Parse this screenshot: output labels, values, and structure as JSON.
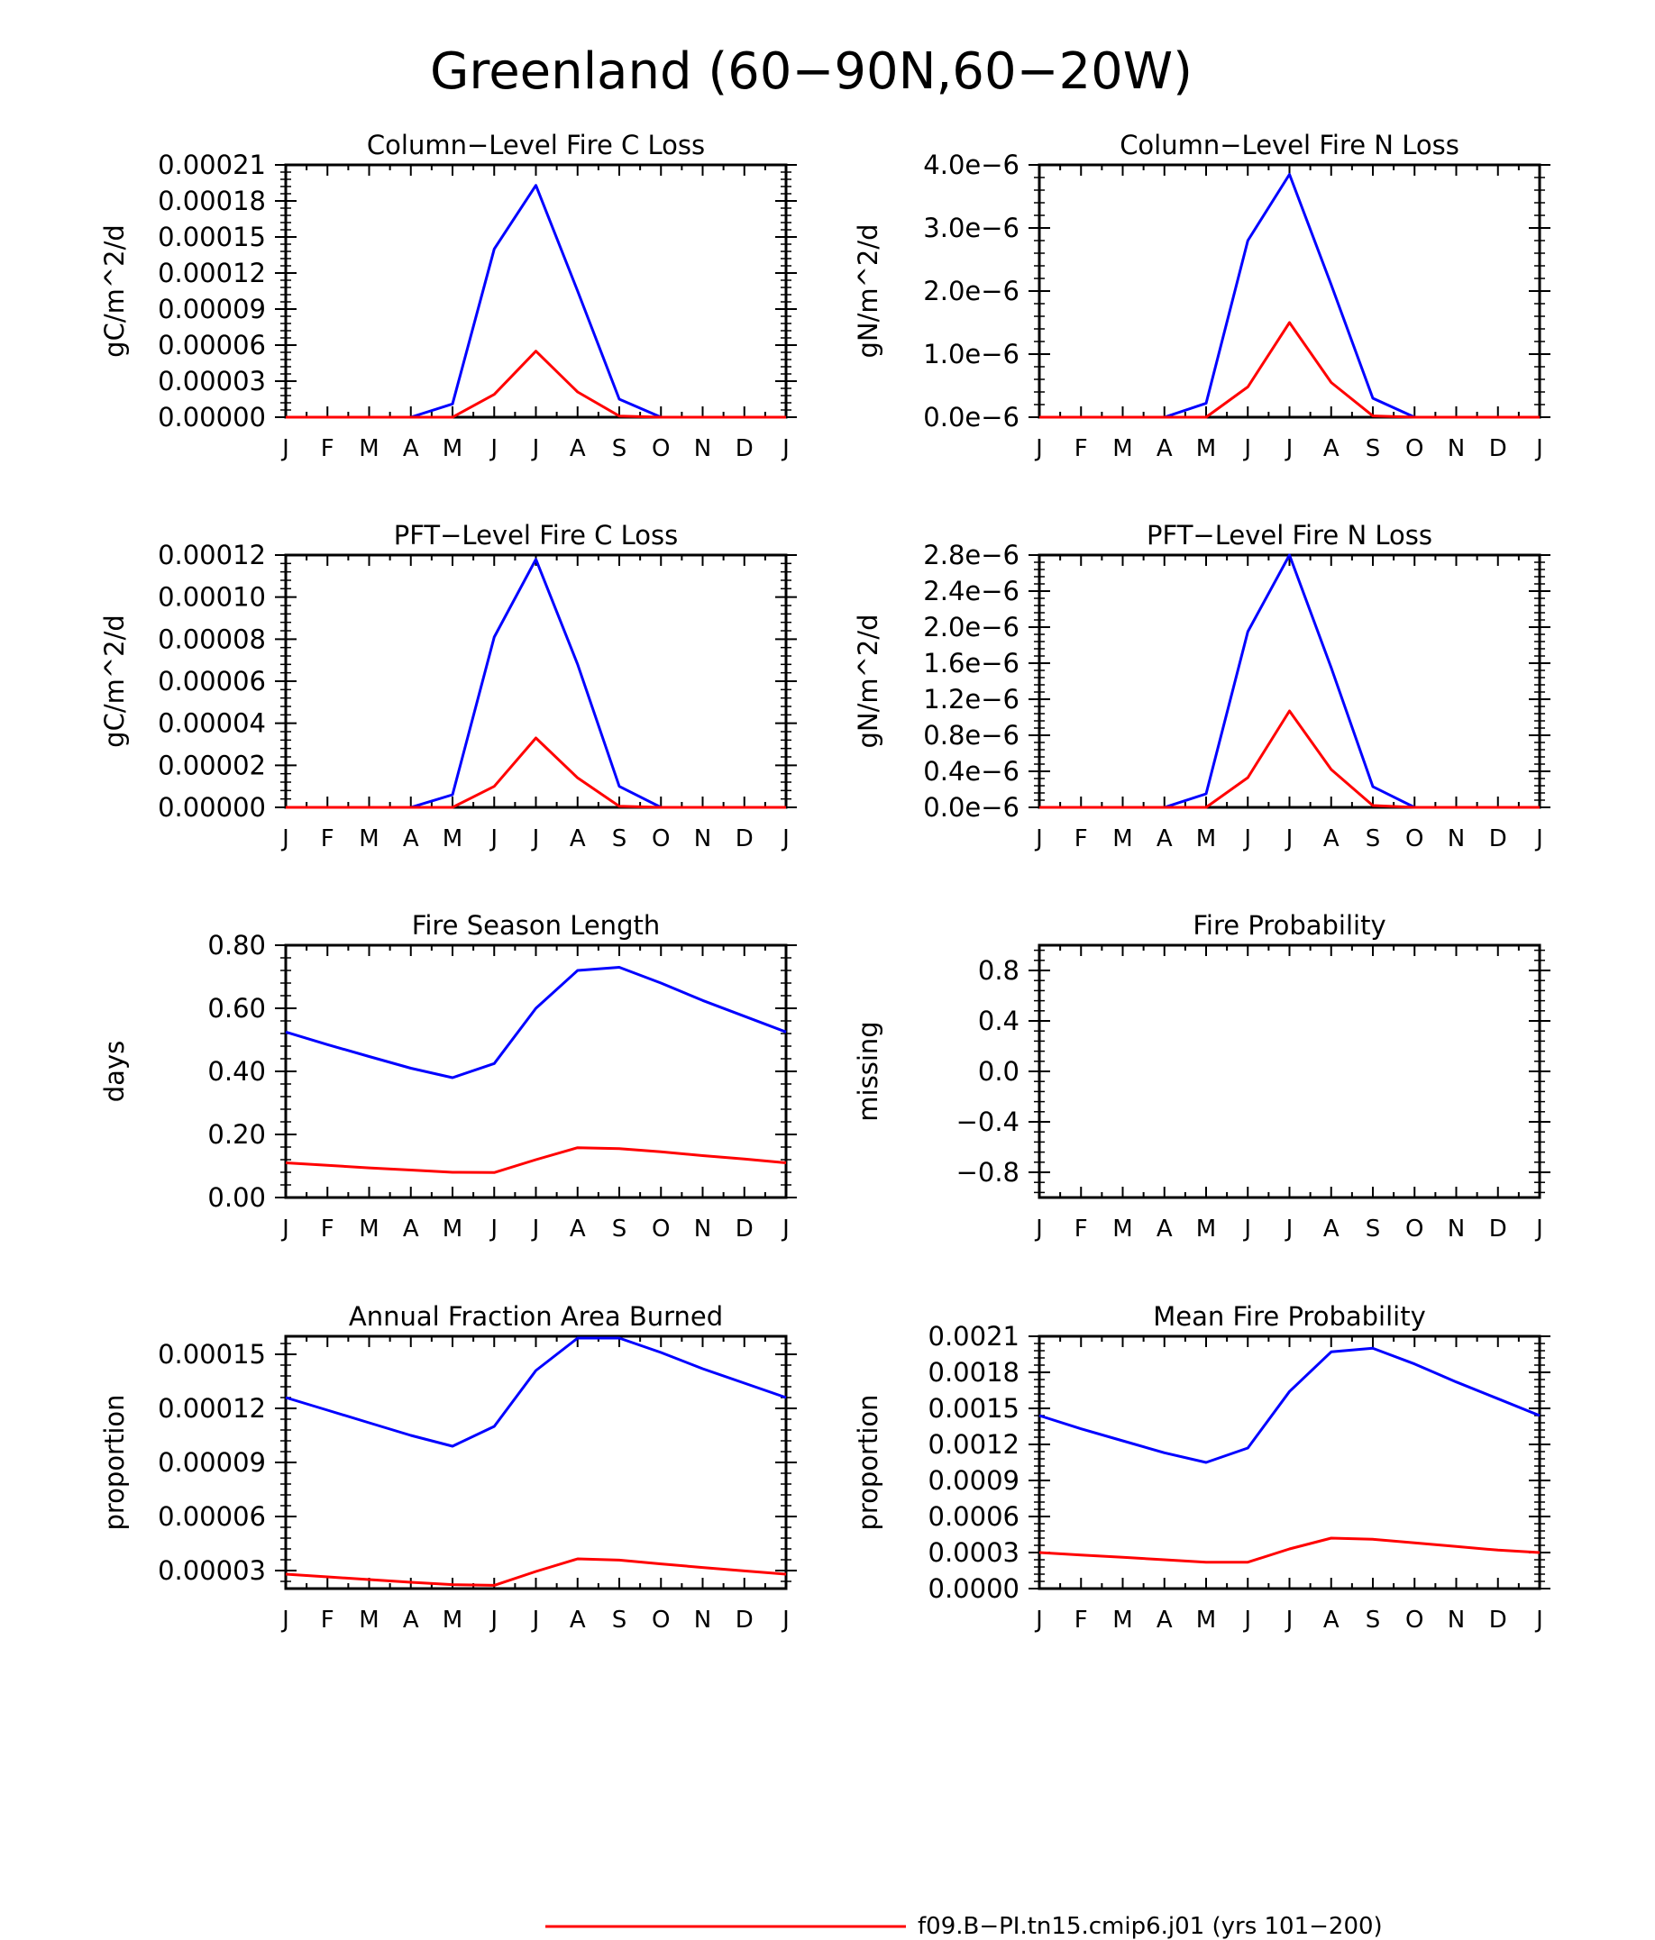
{
  "title": "Greenland (60−90N,60−20W)",
  "months": [
    "J",
    "F",
    "M",
    "A",
    "M",
    "J",
    "J",
    "A",
    "S",
    "O",
    "N",
    "D",
    "J"
  ],
  "colors": {
    "series_blue": "#0000ff",
    "series_red": "#ff0000"
  },
  "legend": {
    "label": "f09.B−PI.tn15.cmip6.j01 (yrs 101−200)",
    "color": "#ff0000"
  },
  "chart_data": [
    {
      "type": "line",
      "title": "Column−Level Fire C Loss",
      "ylabel": "gC/m^2/d",
      "ylim": [
        0,
        0.00021
      ],
      "yticks": [
        0,
        3e-05,
        6e-05,
        9e-05,
        0.00012,
        0.00015,
        0.00018,
        0.00021
      ],
      "yticklabels": [
        "0.00000",
        "0.00003",
        "0.00006",
        "0.00009",
        "0.00012",
        "0.00015",
        "0.00018",
        "0.00021"
      ],
      "series": [
        {
          "color": "#0000ff",
          "values": [
            0,
            0,
            0,
            0,
            1.1e-05,
            0.00014,
            0.000193,
            0.000105,
            1.5e-05,
            0,
            0,
            0,
            0
          ]
        },
        {
          "color": "#ff0000",
          "values": [
            0,
            0,
            0,
            0,
            0,
            1.9e-05,
            5.5e-05,
            2.1e-05,
            1e-06,
            0,
            0,
            0,
            0
          ]
        }
      ]
    },
    {
      "type": "line",
      "title": "Column−Level Fire N Loss",
      "ylabel": "gN/m^2/d",
      "ylim": [
        0,
        4e-06
      ],
      "yticks": [
        0,
        1e-06,
        2e-06,
        3e-06,
        4e-06
      ],
      "yticklabels": [
        "0.0e−6",
        "1.0e−6",
        "2.0e−6",
        "3.0e−6",
        "4.0e−6"
      ],
      "series": [
        {
          "color": "#0000ff",
          "values": [
            0,
            0,
            0,
            0,
            2.2e-07,
            2.8e-06,
            3.85e-06,
            2.1e-06,
            3e-07,
            0,
            0,
            0,
            0
          ]
        },
        {
          "color": "#ff0000",
          "values": [
            0,
            0,
            0,
            0,
            0,
            4.8e-07,
            1.5e-06,
            5.5e-07,
            2e-08,
            0,
            0,
            0,
            0
          ]
        }
      ]
    },
    {
      "type": "line",
      "title": "PFT−Level Fire C Loss",
      "ylabel": "gC/m^2/d",
      "ylim": [
        0,
        0.00012
      ],
      "yticks": [
        0,
        2e-05,
        4e-05,
        6e-05,
        8e-05,
        0.0001,
        0.00012
      ],
      "yticklabels": [
        "0.00000",
        "0.00002",
        "0.00004",
        "0.00006",
        "0.00008",
        "0.00010",
        "0.00012"
      ],
      "series": [
        {
          "color": "#0000ff",
          "values": [
            0,
            0,
            0,
            0,
            6e-06,
            8.1e-05,
            0.000118,
            6.8e-05,
            1e-05,
            0,
            0,
            0,
            0
          ]
        },
        {
          "color": "#ff0000",
          "values": [
            0,
            0,
            0,
            0,
            0,
            1e-05,
            3.3e-05,
            1.4e-05,
            5e-07,
            0,
            0,
            0,
            0
          ]
        }
      ]
    },
    {
      "type": "line",
      "title": "PFT−Level Fire N Loss",
      "ylabel": "gN/m^2/d",
      "ylim": [
        0,
        2.8e-06
      ],
      "yticks": [
        0,
        4e-07,
        8e-07,
        1.2e-06,
        1.6e-06,
        2e-06,
        2.4e-06,
        2.8e-06
      ],
      "yticklabels": [
        "0.0e−6",
        "0.4e−6",
        "0.8e−6",
        "1.2e−6",
        "1.6e−6",
        "2.0e−6",
        "2.4e−6",
        "2.8e−6"
      ],
      "series": [
        {
          "color": "#0000ff",
          "values": [
            0,
            0,
            0,
            0,
            1.5e-07,
            1.95e-06,
            2.8e-06,
            1.55e-06,
            2.3e-07,
            0,
            0,
            0,
            0
          ]
        },
        {
          "color": "#ff0000",
          "values": [
            0,
            0,
            0,
            0,
            0,
            3.3e-07,
            1.07e-06,
            4.2e-07,
            2e-08,
            0,
            0,
            0,
            0
          ]
        }
      ]
    },
    {
      "type": "line",
      "title": "Fire Season Length",
      "ylabel": "days",
      "ylim": [
        0,
        0.8
      ],
      "yticks": [
        0,
        0.2,
        0.4,
        0.6,
        0.8
      ],
      "yticklabels": [
        "0.00",
        "0.20",
        "0.40",
        "0.60",
        "0.80"
      ],
      "series": [
        {
          "color": "#0000ff",
          "values": [
            0.525,
            0.485,
            0.447,
            0.41,
            0.38,
            0.425,
            0.6,
            0.72,
            0.73,
            0.68,
            0.625,
            0.575,
            0.525
          ]
        },
        {
          "color": "#ff0000",
          "values": [
            0.11,
            0.102,
            0.094,
            0.087,
            0.08,
            0.079,
            0.12,
            0.158,
            0.155,
            0.145,
            0.133,
            0.122,
            0.11
          ]
        }
      ]
    },
    {
      "type": "line",
      "title": "Fire Probability",
      "ylabel": "missing",
      "ylim": [
        -1,
        1
      ],
      "yticks": [
        -0.8,
        -0.4,
        0,
        0.4,
        0.8
      ],
      "yticklabels": [
        "−0.8",
        "−0.4",
        "0.0",
        "0.4",
        "0.8"
      ],
      "series": []
    },
    {
      "type": "line",
      "title": "Annual Fraction Area Burned",
      "ylabel": "proportion",
      "ylim": [
        2e-05,
        0.00016
      ],
      "yticks": [
        3e-05,
        6e-05,
        9e-05,
        0.00012,
        0.00015
      ],
      "yticklabels": [
        "0.00003",
        "0.00006",
        "0.00009",
        "0.00012",
        "0.00015"
      ],
      "series": [
        {
          "color": "#0000ff",
          "values": [
            0.000126,
            0.000119,
            0.000112,
            0.000105,
            9.9e-05,
            0.00011,
            0.000141,
            0.000159,
            0.000159,
            0.000151,
            0.000142,
            0.000134,
            0.000126
          ]
        },
        {
          "color": "#ff0000",
          "values": [
            2.8e-05,
            2.65e-05,
            2.5e-05,
            2.35e-05,
            2.22e-05,
            2.18e-05,
            2.95e-05,
            3.65e-05,
            3.58e-05,
            3.37e-05,
            3.17e-05,
            2.98e-05,
            2.8e-05
          ]
        }
      ]
    },
    {
      "type": "line",
      "title": "Mean Fire Probability",
      "ylabel": "proportion",
      "ylim": [
        0,
        0.0021
      ],
      "yticks": [
        0,
        0.0003,
        0.0006,
        0.0009,
        0.0012,
        0.0015,
        0.0018,
        0.0021
      ],
      "yticklabels": [
        "0.0000",
        "0.0003",
        "0.0006",
        "0.0009",
        "0.0012",
        "0.0015",
        "0.0018",
        "0.0021"
      ],
      "series": [
        {
          "color": "#0000ff",
          "values": [
            0.00144,
            0.00133,
            0.00123,
            0.00113,
            0.00105,
            0.00117,
            0.00164,
            0.00197,
            0.002,
            0.00187,
            0.00172,
            0.00158,
            0.00144
          ]
        },
        {
          "color": "#ff0000",
          "values": [
            0.0003,
            0.00028,
            0.00026,
            0.00024,
            0.00022,
            0.00022,
            0.00033,
            0.00042,
            0.00041,
            0.00038,
            0.00035,
            0.00032,
            0.0003
          ]
        }
      ]
    }
  ]
}
